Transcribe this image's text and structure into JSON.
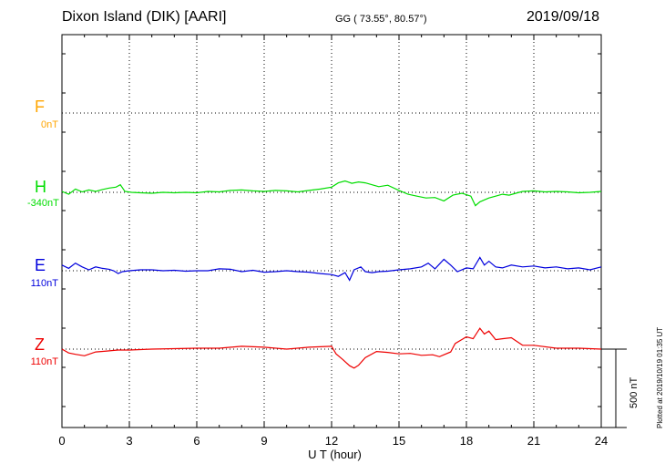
{
  "header": {
    "title": "Dixon Island (DIK)  [AARI]",
    "coords": "GG ( 73.55°,  80.57°)",
    "date": "2019/09/18"
  },
  "footer": {
    "plotted": "Plotted at 2019/10/19 01:35 UT",
    "scale_label": "500 nT"
  },
  "channels": [
    {
      "letter": "F",
      "baseline": "0nT",
      "color": "#ffa500"
    },
    {
      "letter": "H",
      "baseline": "-340nT",
      "color": "#00dd00"
    },
    {
      "letter": "E",
      "baseline": "110nT",
      "color": "#0000dd"
    },
    {
      "letter": "Z",
      "baseline": "110nT",
      "color": "#ee0000"
    }
  ],
  "chart_data": {
    "type": "line",
    "xlabel": "U T (hour)",
    "xlim": [
      0,
      24
    ],
    "xticks": [
      0,
      3,
      6,
      9,
      12,
      15,
      18,
      21,
      24
    ],
    "scale_bar_nT": 500,
    "grid": true,
    "series": [
      {
        "name": "H",
        "color": "#00dd00",
        "baseline": -340,
        "x": [
          0,
          0.3,
          0.6,
          0.9,
          1.2,
          1.5,
          1.8,
          2.1,
          2.4,
          2.6,
          2.8,
          3.1,
          3.5,
          4,
          4.5,
          5,
          5.5,
          6,
          6.5,
          7,
          7.5,
          8,
          8.5,
          9,
          9.5,
          10,
          10.5,
          11,
          11.5,
          12,
          12.3,
          12.6,
          12.9,
          13.2,
          13.5,
          13.8,
          14.1,
          14.5,
          15,
          15.4,
          15.8,
          16.2,
          16.6,
          17,
          17.4,
          17.8,
          18.2,
          18.4,
          18.6,
          18.8,
          19,
          19.3,
          19.6,
          19.9,
          20.2,
          20.5,
          21,
          21.5,
          22,
          22.5,
          23,
          23.5,
          24
        ],
        "y": [
          10,
          -20,
          35,
          5,
          25,
          10,
          30,
          45,
          55,
          80,
          10,
          0,
          -5,
          -10,
          0,
          -5,
          0,
          -5,
          10,
          5,
          20,
          25,
          15,
          10,
          20,
          15,
          5,
          20,
          35,
          55,
          100,
          120,
          95,
          110,
          100,
          80,
          60,
          75,
          20,
          -20,
          -40,
          -60,
          -55,
          -90,
          -30,
          -10,
          -40,
          -140,
          -100,
          -80,
          -60,
          -40,
          -20,
          -30,
          -10,
          10,
          15,
          5,
          10,
          5,
          -5,
          0,
          10
        ]
      },
      {
        "name": "E",
        "color": "#0000dd",
        "baseline": 110,
        "x": [
          0,
          0.3,
          0.6,
          0.9,
          1.2,
          1.5,
          1.8,
          2.1,
          2.3,
          2.5,
          2.7,
          3,
          3.5,
          4,
          4.5,
          5,
          5.5,
          6,
          6.5,
          7,
          7.5,
          8,
          8.5,
          9,
          9.5,
          10,
          10.5,
          11,
          11.5,
          12,
          12.3,
          12.6,
          12.8,
          13,
          13.3,
          13.5,
          13.8,
          14.1,
          14.5,
          15,
          15.5,
          16,
          16.3,
          16.6,
          17,
          17.3,
          17.6,
          18,
          18.3,
          18.6,
          18.8,
          19,
          19.3,
          19.6,
          20,
          20.5,
          21,
          21.5,
          22,
          22.5,
          23,
          23.5,
          24
        ],
        "y": [
          60,
          25,
          80,
          40,
          10,
          40,
          25,
          15,
          0,
          -30,
          -10,
          0,
          10,
          10,
          0,
          5,
          -5,
          0,
          0,
          20,
          15,
          -10,
          5,
          -15,
          -10,
          0,
          -10,
          -15,
          -30,
          -40,
          -60,
          -20,
          -100,
          10,
          40,
          -10,
          -20,
          -10,
          -5,
          10,
          20,
          40,
          80,
          20,
          120,
          60,
          -10,
          30,
          20,
          140,
          60,
          100,
          40,
          30,
          60,
          40,
          50,
          30,
          40,
          20,
          30,
          10,
          40
        ]
      },
      {
        "name": "Z",
        "color": "#ee0000",
        "baseline": 110,
        "x": [
          0,
          0.3,
          0.6,
          1,
          1.5,
          2,
          2.5,
          3,
          4,
          5,
          6,
          7,
          8,
          9,
          10,
          11,
          12,
          12.2,
          12.5,
          12.8,
          13,
          13.2,
          13.5,
          14,
          14.5,
          15,
          15.5,
          16,
          16.5,
          16.8,
          17,
          17.3,
          17.5,
          18,
          18.3,
          18.6,
          18.8,
          19,
          19.3,
          19.6,
          20,
          20.5,
          21,
          22,
          23,
          24
        ],
        "y": [
          0,
          -40,
          -55,
          -70,
          -30,
          -20,
          -10,
          -10,
          0,
          5,
          10,
          10,
          30,
          20,
          0,
          20,
          30,
          -50,
          -110,
          -175,
          -200,
          -170,
          -90,
          -25,
          -35,
          -50,
          -45,
          -65,
          -60,
          -80,
          -60,
          -30,
          60,
          130,
          110,
          220,
          160,
          190,
          100,
          110,
          120,
          40,
          40,
          10,
          10,
          0
        ]
      }
    ]
  }
}
